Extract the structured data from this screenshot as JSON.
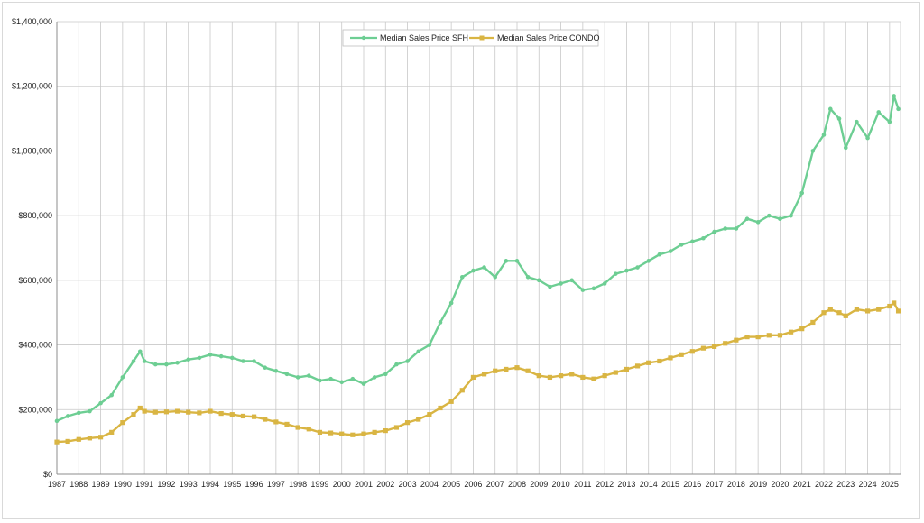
{
  "chart_data": {
    "type": "line",
    "title": "",
    "xlabel": "",
    "ylabel": "",
    "xlim": [
      1987,
      2025.5
    ],
    "ylim": [
      0,
      1400000
    ],
    "grid": true,
    "legend_position": "top-center",
    "y_ticks": [
      {
        "value": 0,
        "label": "$0"
      },
      {
        "value": 200000,
        "label": "$200,000"
      },
      {
        "value": 400000,
        "label": "$400,000"
      },
      {
        "value": 600000,
        "label": "$600,000"
      },
      {
        "value": 800000,
        "label": "$800,000"
      },
      {
        "value": 1000000,
        "label": "$1,000,000"
      },
      {
        "value": 1200000,
        "label": "$1,200,000"
      },
      {
        "value": 1400000,
        "label": "$1,400,000"
      }
    ],
    "x_ticks": [
      "1987",
      "1988",
      "1989",
      "1990",
      "1991",
      "1992",
      "1993",
      "1994",
      "1995",
      "1996",
      "1997",
      "1998",
      "1999",
      "2000",
      "2001",
      "2002",
      "2003",
      "2004",
      "2005",
      "2006",
      "2007",
      "2008",
      "2009",
      "2010",
      "2011",
      "2012",
      "2013",
      "2014",
      "2015",
      "2016",
      "2017",
      "2018",
      "2019",
      "2020",
      "2021",
      "2022",
      "2023",
      "2024",
      "2025"
    ],
    "series": [
      {
        "name": "Median Sales Price SFH",
        "color": "#6dce93",
        "marker": "circle",
        "x": [
          1987.0,
          1987.5,
          1988.0,
          1988.5,
          1989.0,
          1989.5,
          1990.0,
          1990.5,
          1990.8,
          1991.0,
          1991.5,
          1992.0,
          1992.5,
          1993.0,
          1993.5,
          1994.0,
          1994.5,
          1995.0,
          1995.5,
          1996.0,
          1996.5,
          1997.0,
          1997.5,
          1998.0,
          1998.5,
          1999.0,
          1999.5,
          2000.0,
          2000.5,
          2001.0,
          2001.5,
          2002.0,
          2002.5,
          2003.0,
          2003.5,
          2004.0,
          2004.5,
          2005.0,
          2005.5,
          2006.0,
          2006.5,
          2007.0,
          2007.5,
          2008.0,
          2008.5,
          2009.0,
          2009.5,
          2010.0,
          2010.5,
          2011.0,
          2011.5,
          2012.0,
          2012.5,
          2013.0,
          2013.5,
          2014.0,
          2014.5,
          2015.0,
          2015.5,
          2016.0,
          2016.5,
          2017.0,
          2017.5,
          2018.0,
          2018.5,
          2019.0,
          2019.5,
          2020.0,
          2020.5,
          2021.0,
          2021.5,
          2022.0,
          2022.3,
          2022.7,
          2023.0,
          2023.5,
          2024.0,
          2024.5,
          2025.0,
          2025.2,
          2025.4
        ],
        "y": [
          165000,
          180000,
          190000,
          195000,
          220000,
          245000,
          300000,
          350000,
          380000,
          350000,
          340000,
          340000,
          345000,
          355000,
          360000,
          370000,
          365000,
          360000,
          350000,
          350000,
          330000,
          320000,
          310000,
          300000,
          305000,
          290000,
          295000,
          285000,
          295000,
          280000,
          300000,
          310000,
          340000,
          350000,
          380000,
          400000,
          470000,
          530000,
          610000,
          630000,
          640000,
          610000,
          660000,
          660000,
          610000,
          600000,
          580000,
          590000,
          600000,
          570000,
          575000,
          590000,
          620000,
          630000,
          640000,
          660000,
          680000,
          690000,
          710000,
          720000,
          730000,
          750000,
          760000,
          760000,
          790000,
          780000,
          800000,
          790000,
          800000,
          870000,
          1000000,
          1050000,
          1130000,
          1100000,
          1010000,
          1090000,
          1040000,
          1120000,
          1090000,
          1170000,
          1130000
        ]
      },
      {
        "name": "Median Sales Price CONDO",
        "color": "#d9b543",
        "marker": "square",
        "x": [
          1987.0,
          1987.5,
          1988.0,
          1988.5,
          1989.0,
          1989.5,
          1990.0,
          1990.5,
          1990.8,
          1991.0,
          1991.5,
          1992.0,
          1992.5,
          1993.0,
          1993.5,
          1994.0,
          1994.5,
          1995.0,
          1995.5,
          1996.0,
          1996.5,
          1997.0,
          1997.5,
          1998.0,
          1998.5,
          1999.0,
          1999.5,
          2000.0,
          2000.5,
          2001.0,
          2001.5,
          2002.0,
          2002.5,
          2003.0,
          2003.5,
          2004.0,
          2004.5,
          2005.0,
          2005.5,
          2006.0,
          2006.5,
          2007.0,
          2007.5,
          2008.0,
          2008.5,
          2009.0,
          2009.5,
          2010.0,
          2010.5,
          2011.0,
          2011.5,
          2012.0,
          2012.5,
          2013.0,
          2013.5,
          2014.0,
          2014.5,
          2015.0,
          2015.5,
          2016.0,
          2016.5,
          2017.0,
          2017.5,
          2018.0,
          2018.5,
          2019.0,
          2019.5,
          2020.0,
          2020.5,
          2021.0,
          2021.5,
          2022.0,
          2022.3,
          2022.7,
          2023.0,
          2023.5,
          2024.0,
          2024.5,
          2025.0,
          2025.2,
          2025.4
        ],
        "y": [
          100000,
          102000,
          108000,
          112000,
          115000,
          130000,
          160000,
          185000,
          205000,
          195000,
          192000,
          193000,
          195000,
          192000,
          190000,
          195000,
          188000,
          185000,
          180000,
          178000,
          170000,
          162000,
          155000,
          145000,
          140000,
          130000,
          128000,
          125000,
          122000,
          125000,
          130000,
          135000,
          145000,
          160000,
          170000,
          185000,
          205000,
          225000,
          260000,
          300000,
          310000,
          320000,
          325000,
          330000,
          320000,
          305000,
          300000,
          305000,
          310000,
          300000,
          295000,
          305000,
          315000,
          325000,
          335000,
          345000,
          350000,
          360000,
          370000,
          380000,
          390000,
          395000,
          405000,
          415000,
          425000,
          425000,
          430000,
          430000,
          440000,
          450000,
          470000,
          500000,
          510000,
          500000,
          490000,
          510000,
          505000,
          510000,
          520000,
          530000,
          505000
        ]
      }
    ]
  }
}
